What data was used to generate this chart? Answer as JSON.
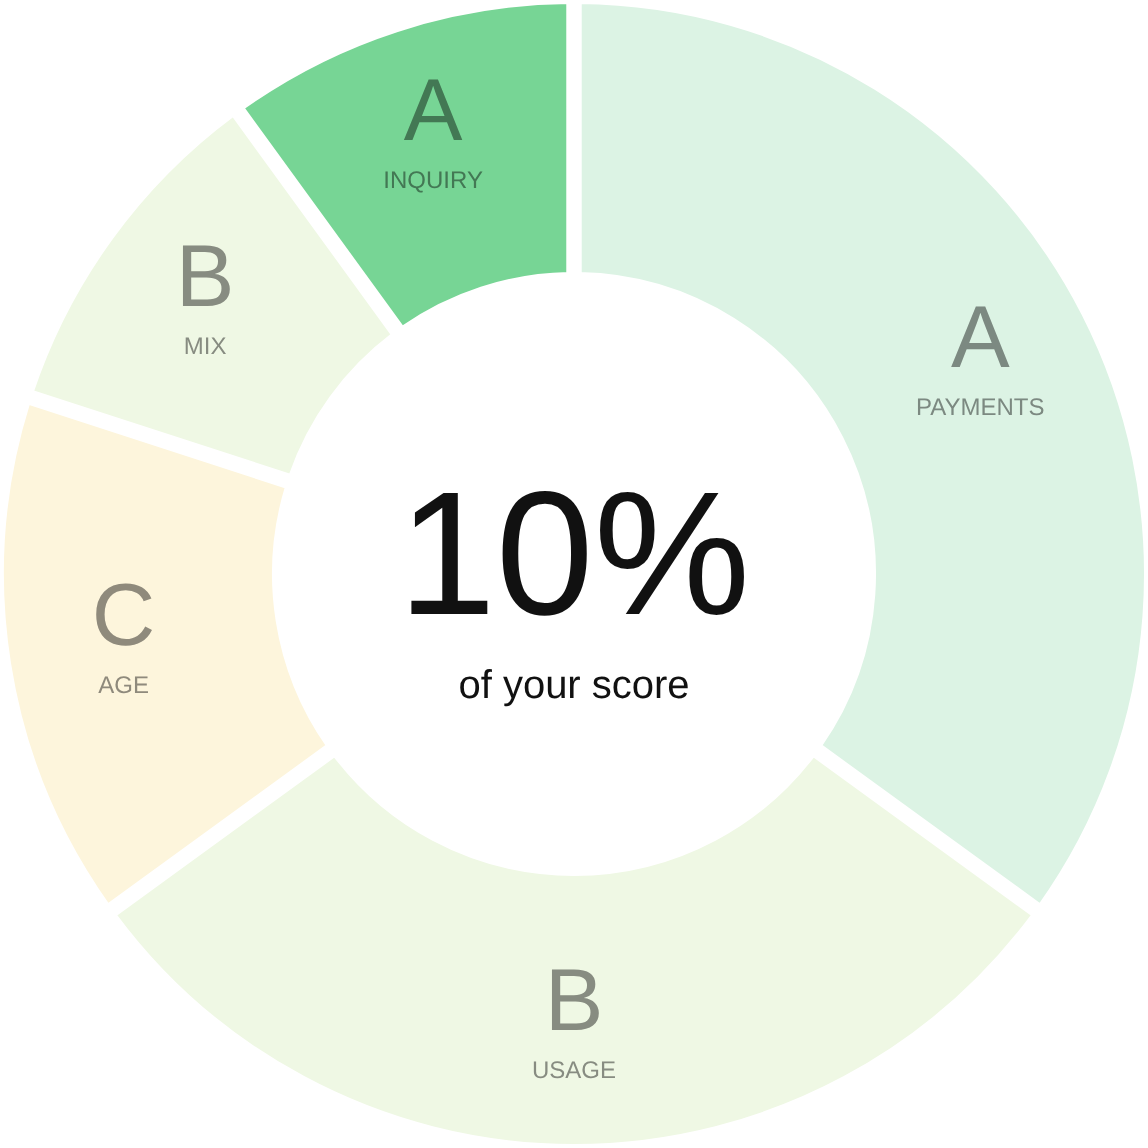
{
  "chart_data": {
    "type": "donut",
    "title": "10%",
    "subtitle": "of your score",
    "categories": [
      "PAYMENTS",
      "USAGE",
      "AGE",
      "MIX",
      "INQUIRY"
    ],
    "values": [
      35,
      30,
      15,
      10,
      10
    ],
    "colors": [
      "#dcf3e4",
      "#eff8e4",
      "#fdf5dc",
      "#eff8e4",
      "#77d595"
    ],
    "annotations": [
      "A",
      "B",
      "C",
      "B",
      "A"
    ]
  }
}
